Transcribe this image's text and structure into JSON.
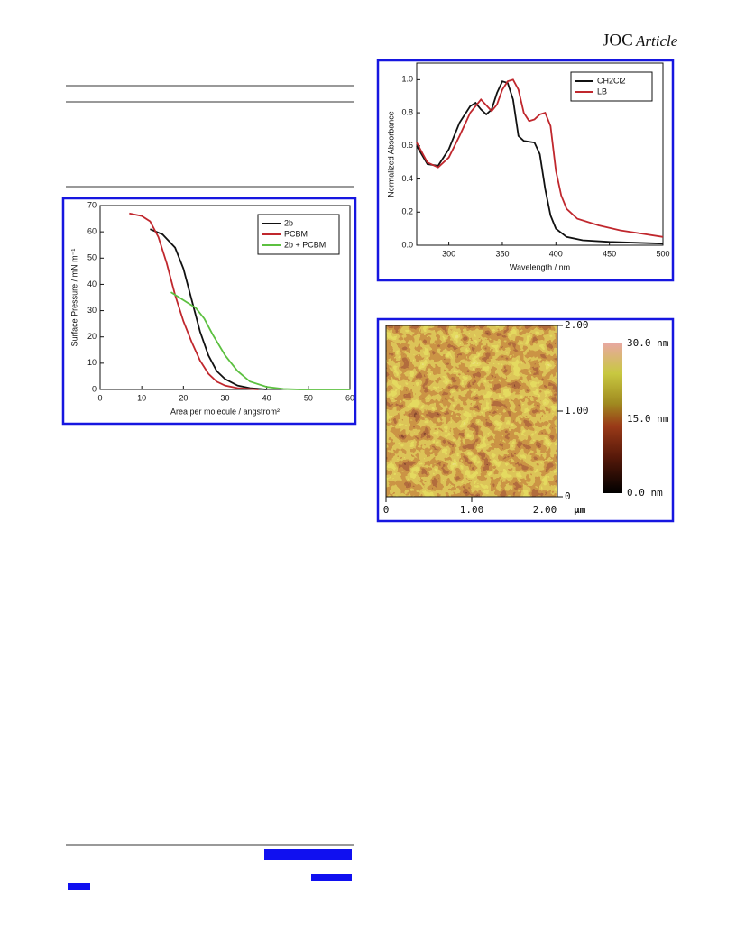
{
  "header": {
    "journal": "JOC",
    "section": "Article"
  },
  "chart_data": [
    {
      "type": "line",
      "xlabel": "Area per molecule / angstrom²",
      "ylabel": "Surface Pressure / mN m⁻¹",
      "xlim": [
        0,
        60
      ],
      "ylim": [
        0,
        70
      ],
      "xticks": [
        0,
        10,
        20,
        30,
        40,
        50,
        60
      ],
      "yticks": [
        0,
        10,
        20,
        30,
        40,
        50,
        60,
        70
      ],
      "legend": "upper right",
      "series": [
        {
          "name": "2b",
          "color": "#111111",
          "x": [
            12,
            15,
            18,
            20,
            22,
            24,
            26,
            28,
            30,
            33,
            36,
            40
          ],
          "values": [
            61,
            59,
            54,
            46,
            34,
            22,
            13,
            7,
            4,
            1.5,
            0.5,
            0
          ]
        },
        {
          "name": "PCBM",
          "color": "#c0272d",
          "x": [
            7,
            10,
            12,
            14,
            16,
            18,
            20,
            22,
            24,
            26,
            28,
            30,
            33,
            38
          ],
          "values": [
            67,
            66,
            64,
            58,
            48,
            36,
            26,
            18,
            11,
            6,
            3,
            1.5,
            0.5,
            0
          ]
        },
        {
          "name": "2b + PCBM",
          "color": "#5cc040",
          "x": [
            17,
            20,
            23,
            25,
            27,
            30,
            33,
            36,
            40,
            44,
            48,
            60
          ],
          "values": [
            37,
            34,
            31,
            27,
            21,
            13,
            7,
            3,
            1,
            0.2,
            0,
            0
          ]
        }
      ]
    },
    {
      "type": "line",
      "xlabel": "Wavelength / nm",
      "ylabel": "Normalized Absorbance",
      "xlim": [
        270,
        500
      ],
      "ylim": [
        0,
        1.1
      ],
      "xticks": [
        300,
        350,
        400,
        450,
        500
      ],
      "yticks": [
        {
          "value": 0,
          "label": "0.0"
        },
        {
          "value": 0.2,
          "label": "0.2"
        },
        {
          "value": 0.4,
          "label": "0.4"
        },
        {
          "value": 0.6,
          "label": "0.6"
        },
        {
          "value": 0.8,
          "label": "0.8"
        },
        {
          "value": 1,
          "label": "1.0"
        }
      ],
      "legend": "upper right",
      "series": [
        {
          "name": "CH2Cl2",
          "color": "#111111",
          "x": [
            270,
            280,
            290,
            300,
            310,
            320,
            325,
            330,
            335,
            340,
            345,
            350,
            355,
            360,
            365,
            370,
            380,
            385,
            390,
            395,
            400,
            410,
            425,
            450,
            500
          ],
          "values": [
            0.6,
            0.49,
            0.48,
            0.58,
            0.74,
            0.84,
            0.86,
            0.82,
            0.79,
            0.82,
            0.92,
            0.99,
            0.98,
            0.88,
            0.66,
            0.63,
            0.62,
            0.55,
            0.34,
            0.18,
            0.1,
            0.05,
            0.03,
            0.02,
            0.01
          ]
        },
        {
          "name": "LB",
          "color": "#c0272d",
          "x": [
            270,
            280,
            290,
            300,
            310,
            320,
            330,
            340,
            345,
            350,
            355,
            360,
            365,
            370,
            375,
            380,
            385,
            390,
            395,
            400,
            405,
            410,
            420,
            440,
            460,
            480,
            500
          ],
          "values": [
            0.62,
            0.5,
            0.47,
            0.53,
            0.66,
            0.8,
            0.88,
            0.81,
            0.85,
            0.94,
            0.99,
            1.0,
            0.94,
            0.8,
            0.75,
            0.76,
            0.79,
            0.8,
            0.72,
            0.45,
            0.3,
            0.22,
            0.16,
            0.12,
            0.09,
            0.07,
            0.05
          ]
        }
      ]
    }
  ],
  "afm_image": {
    "right_axis": [
      "2.00",
      "1.00",
      "0"
    ],
    "bottom_axis": [
      "0",
      "1.00",
      "2.00"
    ],
    "unit": "μm",
    "colorbar": [
      "30.0 nm",
      "15.0 nm",
      "0.0 nm"
    ]
  }
}
